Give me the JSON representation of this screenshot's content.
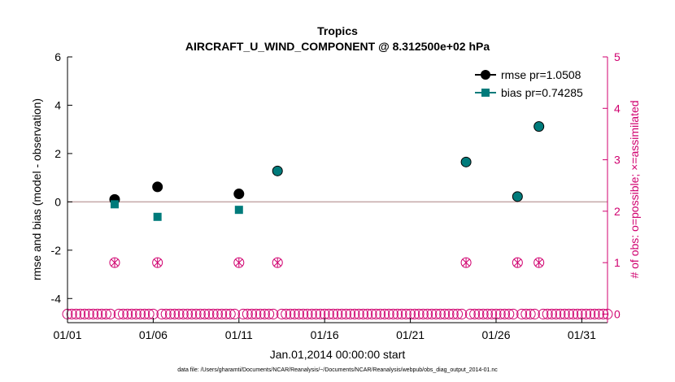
{
  "chart_data": {
    "type": "scatter",
    "title": "Tropics",
    "subtitle": "AIRCRAFT_U_WIND_COMPONENT @ 8.312500e+02 hPa",
    "xlabel": "Jan.01,2014 00:00:00 start",
    "ylabel_left": "rmse and bias (model - observation)",
    "ylabel_right": "# of obs: o=possible; ×=assimilated",
    "footnote": "data file: /Users/gharamti/Documents/NCAR/Reanalysis/~/Documents/NCAR/Reanalysis/webpub/obs_diag_output_2014-01.nc",
    "xlim": [
      1,
      32.5
    ],
    "ylim_left": [
      -5,
      6
    ],
    "ylim_right": [
      -0.167,
      5
    ],
    "x_ticks": [
      1,
      6,
      11,
      16,
      21,
      26,
      31
    ],
    "x_tick_labels": [
      "01/01",
      "01/06",
      "01/11",
      "01/16",
      "01/21",
      "01/26",
      "01/31"
    ],
    "y_ticks_left": [
      -4,
      -2,
      0,
      2,
      4,
      6
    ],
    "y_tick_labels_left": [
      "-4",
      "-2",
      "0",
      "2",
      "4",
      "6"
    ],
    "y_ticks_right": [
      0,
      1,
      2,
      3,
      4,
      5
    ],
    "y_tick_labels_right": [
      "0",
      "1",
      "2",
      "3",
      "4",
      "5"
    ],
    "legend_position": "top-right",
    "series": [
      {
        "name": "rmse pr=1.0508",
        "color": "#000000",
        "x": [
          3.75,
          6.25,
          11.0,
          13.25,
          24.25,
          27.25,
          28.5
        ],
        "values": [
          0.1,
          0.62,
          0.33,
          1.28,
          1.65,
          0.22,
          3.12
        ]
      },
      {
        "name": "bias pr=0.74285",
        "color": "#007b7b",
        "x": [
          3.75,
          6.25,
          11.0,
          13.25,
          24.25,
          27.25,
          28.5
        ],
        "values": [
          -0.1,
          -0.62,
          -0.33,
          1.28,
          1.65,
          0.22,
          3.12
        ]
      }
    ],
    "obs_count": {
      "color": "#d0006f",
      "x_start": 1.0,
      "x_end": 32.5,
      "step": 0.25,
      "nonzero_x": [
        3.75,
        6.25,
        11.0,
        13.25,
        24.25,
        27.25,
        28.5
      ],
      "nonzero_value": 1
    },
    "zero_line_color": "#c4a7a7"
  }
}
